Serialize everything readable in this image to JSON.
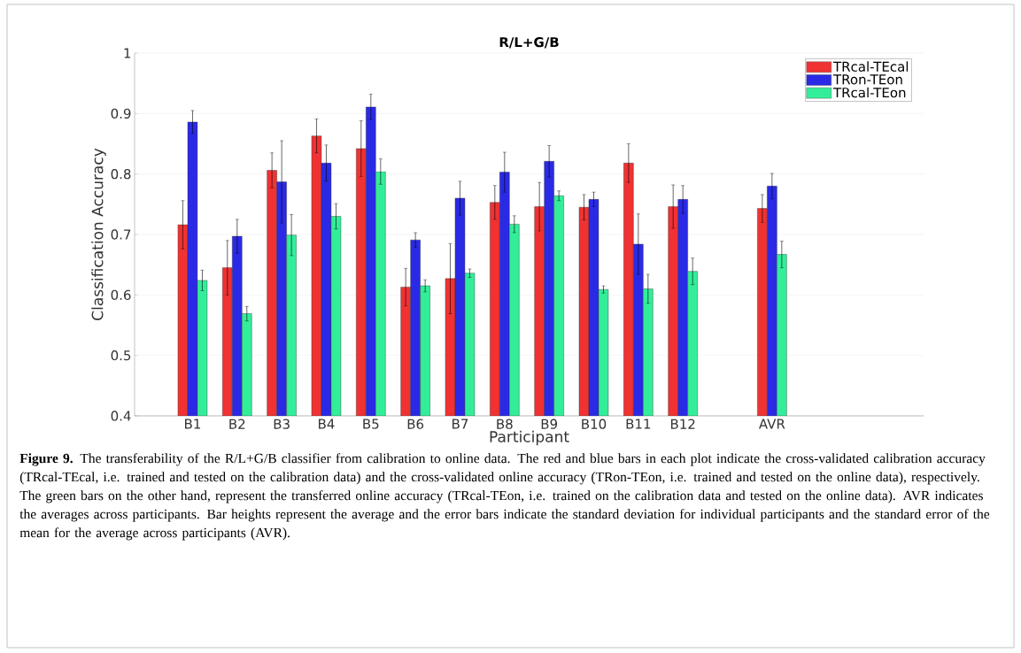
{
  "chart_data": {
    "type": "bar",
    "title": "R/L+G/B",
    "xlabel": "Participant",
    "ylabel": "Classification Accuracy",
    "categories": [
      "B1",
      "B2",
      "B3",
      "B4",
      "B5",
      "B6",
      "B7",
      "B8",
      "B9",
      "B10",
      "B11",
      "B12",
      null,
      "AVR"
    ],
    "series": [
      {
        "name": "TRcal-TEcal",
        "color": "#f03232",
        "values": [
          0.716,
          0.645,
          0.806,
          0.863,
          0.842,
          0.613,
          0.627,
          0.753,
          0.746,
          0.745,
          0.818,
          0.746,
          null,
          0.743
        ],
        "errors": [
          0.04,
          0.045,
          0.029,
          0.028,
          0.046,
          0.031,
          0.058,
          0.028,
          0.04,
          0.021,
          0.032,
          0.036,
          null,
          0.023
        ]
      },
      {
        "name": "TRon-TEon",
        "color": "#2a2ae6",
        "values": [
          0.886,
          0.697,
          0.787,
          0.818,
          0.911,
          0.691,
          0.76,
          0.803,
          0.821,
          0.758,
          0.684,
          0.758,
          null,
          0.78
        ],
        "errors": [
          0.019,
          0.028,
          0.068,
          0.03,
          0.021,
          0.012,
          0.028,
          0.033,
          0.026,
          0.012,
          0.05,
          0.023,
          null,
          0.021
        ]
      },
      {
        "name": "TRcal-TEon",
        "color": "#33ee99",
        "values": [
          0.624,
          0.569,
          0.699,
          0.73,
          0.804,
          0.615,
          0.636,
          0.717,
          0.764,
          0.609,
          0.61,
          0.639,
          null,
          0.667
        ],
        "errors": [
          0.017,
          0.012,
          0.034,
          0.021,
          0.021,
          0.01,
          0.007,
          0.014,
          0.008,
          0.006,
          0.024,
          0.022,
          null,
          0.022
        ]
      }
    ],
    "ylim": [
      0.4,
      1
    ],
    "yticks": [
      0.4,
      0.5,
      0.6,
      0.7,
      0.8,
      0.9,
      1
    ],
    "grid": "y",
    "legend": "top right",
    "annotations": [
      "**Figure 9.** The transferability of the R/L+G/B classifier from calibration to online data. The red and blue bars in each plot indicate the cross-validated calibration accuracy (TRcal-TEcal, i.e. trained and tested on the calibration data) and the cross-validated online accuracy (TRon-TEon, i.e. trained and tested on the online data), respectively. The green bars on the other hand, represent the transferred online accuracy (TRcal-TEon, i.e. trained on the calibration data and tested on the online data). AVR indicates the averages across participants. Bar heights represent the average and the error bars indicate the standard deviation for individual participants and the standard error of the mean for the average across participants (AVR)."
    ]
  }
}
